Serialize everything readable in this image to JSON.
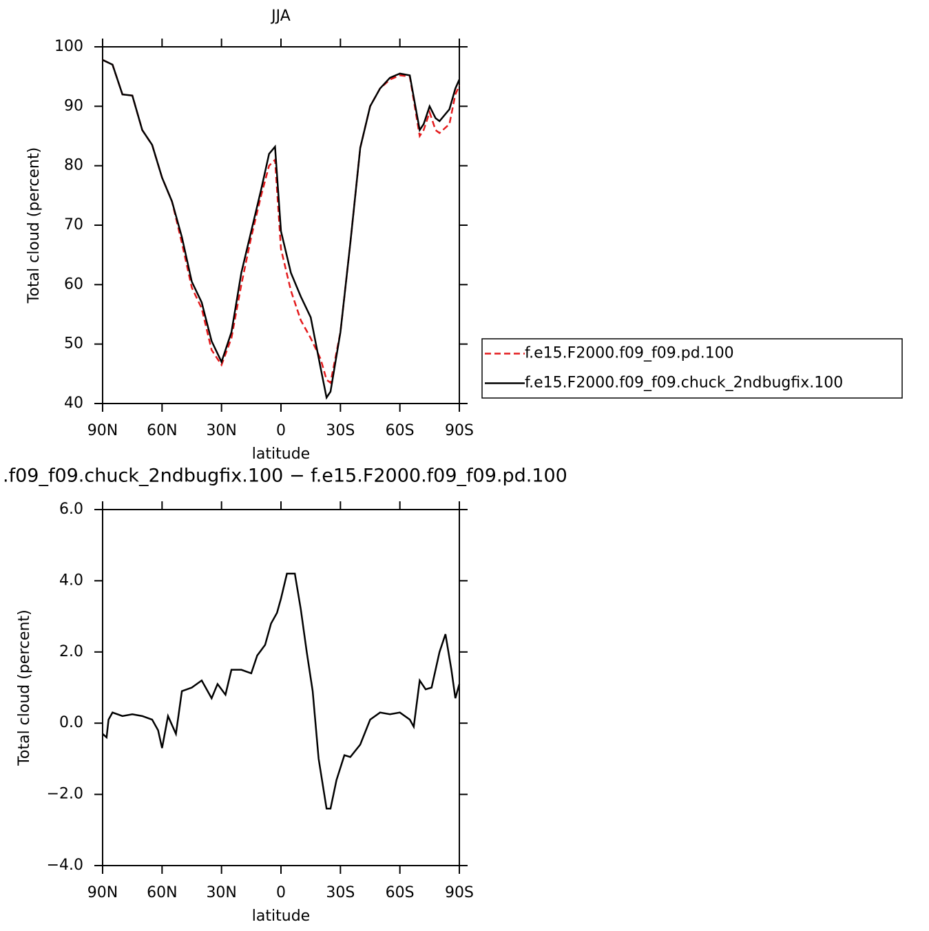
{
  "chart_data": [
    {
      "type": "line",
      "title": "JJA",
      "xlabel": "latitude",
      "ylabel": "Total cloud (percent)",
      "x": [
        90,
        85,
        80,
        75,
        70,
        65,
        60,
        55,
        50,
        45,
        40,
        35,
        30,
        25,
        20,
        15,
        10,
        6,
        3,
        0,
        -5,
        -10,
        -15,
        -20,
        -23,
        -25,
        -30,
        -35,
        -40,
        -45,
        -50,
        -55,
        -60,
        -65,
        -70,
        -72,
        -75,
        -78,
        -80,
        -85,
        -88,
        -90
      ],
      "series": [
        {
          "name": "f.e15.F2000.f09_f09.pd.100",
          "color": "#e41a1c",
          "dash": true,
          "values": [
            97.8,
            97,
            92,
            91.8,
            86,
            83.5,
            78,
            74,
            67,
            59.5,
            56,
            49,
            46.5,
            51,
            60,
            68,
            75,
            80,
            81,
            66,
            59,
            54,
            51,
            47.5,
            44,
            43.5,
            52,
            67,
            83,
            90,
            93,
            94.5,
            95.2,
            95,
            85,
            86,
            89,
            86,
            85.5,
            87,
            92,
            93.5
          ]
        },
        {
          "name": "f.e15.F2000.f09_f09.chuck_2ndbugfix.100",
          "color": "#000000",
          "dash": false,
          "values": [
            97.8,
            97,
            92,
            91.8,
            86,
            83.5,
            78,
            74,
            68,
            60.5,
            57,
            50.5,
            47,
            52,
            62,
            69,
            76,
            82,
            83.2,
            69,
            62,
            58,
            54.5,
            46,
            41,
            42,
            52,
            67,
            83,
            90,
            93,
            94.8,
            95.5,
            95.2,
            86,
            87,
            90,
            88,
            87.5,
            89.5,
            93,
            94.5
          ]
        }
      ],
      "xlim": [
        90,
        -90
      ],
      "xticks": [
        {
          "value": 90,
          "label": "90N"
        },
        {
          "value": 60,
          "label": "60N"
        },
        {
          "value": 30,
          "label": "30N"
        },
        0,
        {
          "value": -30,
          "label": "30S"
        },
        {
          "value": -60,
          "label": "60S"
        },
        {
          "value": -90,
          "label": "90S"
        }
      ],
      "ylim": [
        40,
        100
      ],
      "yticks": [
        40,
        50,
        60,
        70,
        80,
        90,
        100
      ],
      "legend": "outside-right"
    },
    {
      "type": "line",
      "title": ".f09_f09.chuck_2ndbugfix.100 − f.e15.F2000.f09_f09.pd.100",
      "xlabel": "latitude",
      "ylabel": "Total cloud (percent)",
      "x": [
        90,
        88,
        87,
        85,
        80,
        75,
        70,
        65,
        62,
        60,
        57,
        53,
        50,
        45,
        40,
        35,
        32,
        28,
        25,
        20,
        15,
        12,
        8,
        5,
        2,
        0,
        -3,
        -7,
        -10,
        -13,
        -16,
        -19,
        -23,
        -25,
        -28,
        -32,
        -35,
        -40,
        -45,
        -50,
        -55,
        -60,
        -65,
        -67,
        -70,
        -73,
        -76,
        -80,
        -83,
        -86,
        -88,
        -90
      ],
      "values": [
        -0.3,
        -0.4,
        0.1,
        0.3,
        0.2,
        0.25,
        0.2,
        0.1,
        -0.2,
        -0.7,
        0.2,
        -0.3,
        0.9,
        1.0,
        1.2,
        0.7,
        1.1,
        0.8,
        1.5,
        1.5,
        1.4,
        1.9,
        2.2,
        2.8,
        3.1,
        3.5,
        4.2,
        4.2,
        3.2,
        2.0,
        0.9,
        -1.0,
        -2.4,
        -2.4,
        -1.6,
        -0.9,
        -0.95,
        -0.6,
        0.1,
        0.3,
        0.25,
        0.3,
        0.1,
        -0.1,
        1.2,
        0.95,
        1.0,
        2.0,
        2.5,
        1.5,
        0.7,
        1.1
      ],
      "color": "#000000",
      "xlim": [
        90,
        -90
      ],
      "xticks": [
        {
          "value": 90,
          "label": "90N"
        },
        {
          "value": 60,
          "label": "60N"
        },
        {
          "value": 30,
          "label": "30N"
        },
        0,
        {
          "value": -30,
          "label": "30S"
        },
        {
          "value": -60,
          "label": "60S"
        },
        {
          "value": -90,
          "label": "90S"
        }
      ],
      "ylim": [
        -4,
        6
      ],
      "yticks": [
        {
          "value": -4,
          "label": "−4.0"
        },
        {
          "value": -2,
          "label": "−2.0"
        },
        {
          "value": 0,
          "label": "0.0"
        },
        {
          "value": 2,
          "label": "2.0"
        },
        {
          "value": 4,
          "label": "4.0"
        },
        {
          "value": 6,
          "label": "6.0"
        }
      ]
    }
  ]
}
